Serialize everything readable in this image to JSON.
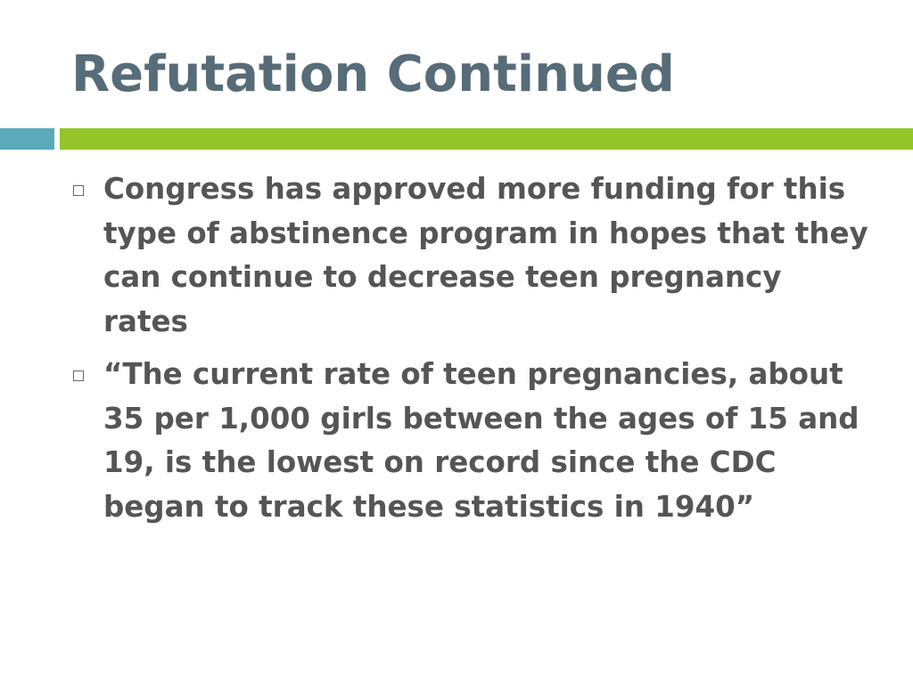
{
  "slide": {
    "title": "Refutation Continued",
    "colors": {
      "title": "#566c78",
      "accent_teal": "#5aaabb",
      "accent_green": "#93c52a",
      "body_text": "#555555"
    },
    "bullets": [
      {
        "icon": "hollow-square-bullet-icon",
        "text": "Congress has approved more funding for this type of abstinence program in hopes that they can continue to decrease teen pregnancy rates"
      },
      {
        "icon": "hollow-square-bullet-icon",
        "text": "“The current rate of teen pregnancies, about 35 per 1,000 girls between the ages of 15 and 19, is the lowest on record since the CDC began to track these statistics in 1940”"
      }
    ]
  }
}
